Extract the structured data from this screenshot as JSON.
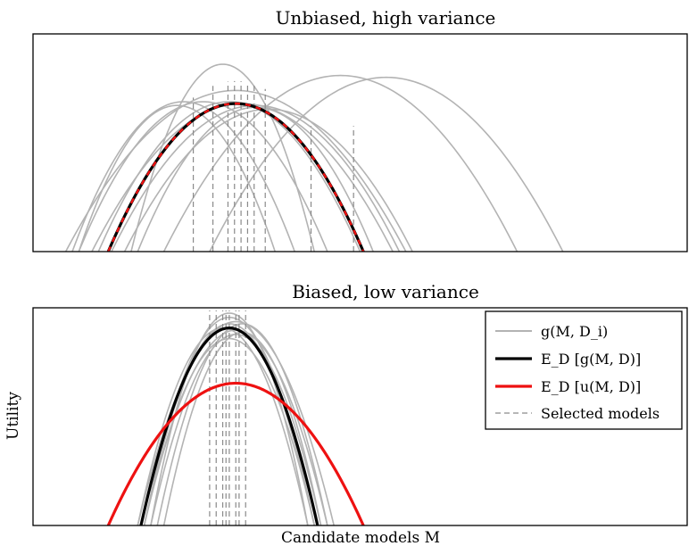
{
  "chart_data": [
    {
      "type": "line",
      "title": "Unbiased, high variance",
      "xlabel": "",
      "ylabel": "",
      "x_range": [
        0,
        1
      ],
      "y_range": [
        0,
        1
      ],
      "grid": false,
      "samples": [
        {
          "peak_x": 0.29,
          "peak_y": 1.0,
          "left_root": 0.15
        },
        {
          "peak_x": 0.47,
          "peak_y": 0.94,
          "left_root": 0.2
        },
        {
          "peak_x": 0.54,
          "peak_y": 0.93,
          "left_root": 0.27
        },
        {
          "peak_x": 0.31,
          "peak_y": 0.86,
          "left_root": 0.05
        },
        {
          "peak_x": 0.23,
          "peak_y": 0.8,
          "left_root": 0.06
        },
        {
          "peak_x": 0.26,
          "peak_y": 0.8,
          "left_root": 0.07
        },
        {
          "peak_x": 0.22,
          "peak_y": 0.78,
          "left_root": 0.07
        },
        {
          "peak_x": 0.32,
          "peak_y": 0.79,
          "left_root": 0.09
        },
        {
          "peak_x": 0.3,
          "peak_y": 0.8,
          "left_root": 0.1
        },
        {
          "peak_x": 0.34,
          "peak_y": 0.78,
          "left_root": 0.12
        },
        {
          "peak_x": 0.36,
          "peak_y": 0.76,
          "left_root": 0.14
        },
        {
          "peak_x": 0.34,
          "peak_y": 0.77,
          "left_root": 0.16
        }
      ],
      "mean_g": {
        "peak_x": 0.31,
        "peak_y": 0.79,
        "left_root": 0.115
      },
      "mean_u": {
        "peak_x": 0.31,
        "peak_y": 0.79,
        "left_root": 0.115
      },
      "selected_models": [
        0.245,
        0.275,
        0.298,
        0.308,
        0.318,
        0.328,
        0.338,
        0.355,
        0.425,
        0.49
      ]
    },
    {
      "type": "line",
      "title": "Biased, low variance",
      "xlabel": "Candidate models M",
      "ylabel": "Utility",
      "x_range": [
        0,
        1
      ],
      "y_range": [
        0,
        1
      ],
      "grid": false,
      "samples": [
        {
          "peak_x": 0.3,
          "peak_y": 1.0,
          "left_root": 0.18
        },
        {
          "peak_x": 0.3,
          "peak_y": 0.98,
          "left_root": 0.17
        },
        {
          "peak_x": 0.31,
          "peak_y": 0.96,
          "left_root": 0.16
        },
        {
          "peak_x": 0.3,
          "peak_y": 0.95,
          "left_root": 0.17
        },
        {
          "peak_x": 0.32,
          "peak_y": 0.95,
          "left_root": 0.19
        },
        {
          "peak_x": 0.29,
          "peak_y": 0.93,
          "left_root": 0.16
        },
        {
          "peak_x": 0.31,
          "peak_y": 0.92,
          "left_root": 0.17
        },
        {
          "peak_x": 0.31,
          "peak_y": 0.9,
          "left_root": 0.18
        },
        {
          "peak_x": 0.3,
          "peak_y": 0.88,
          "left_root": 0.17
        },
        {
          "peak_x": 0.32,
          "peak_y": 0.91,
          "left_root": 0.2
        }
      ],
      "mean_g": {
        "peak_x": 0.3,
        "peak_y": 0.93,
        "left_root": 0.165
      },
      "mean_u": {
        "peak_x": 0.31,
        "peak_y": 0.67,
        "left_root": 0.115
      },
      "selected_models": [
        0.27,
        0.28,
        0.29,
        0.295,
        0.3,
        0.31,
        0.315,
        0.325
      ]
    }
  ],
  "legend": {
    "placement": "top-right",
    "items": [
      {
        "label": "g(M, D_i)",
        "color": "#b3b3b3",
        "style": "solid"
      },
      {
        "label": "E_D [g(M, D)]",
        "color": "#000000",
        "style": "solid"
      },
      {
        "label": "E_D [u(M, D)]",
        "color": "#ee1111",
        "style": "solid"
      },
      {
        "label": "Selected models",
        "color": "#888888",
        "style": "dashed"
      }
    ]
  },
  "colors": {
    "sample": "#b3b3b3",
    "mean_g": "#000000",
    "mean_u": "#ee1111",
    "selected": "#8a8a8a"
  }
}
